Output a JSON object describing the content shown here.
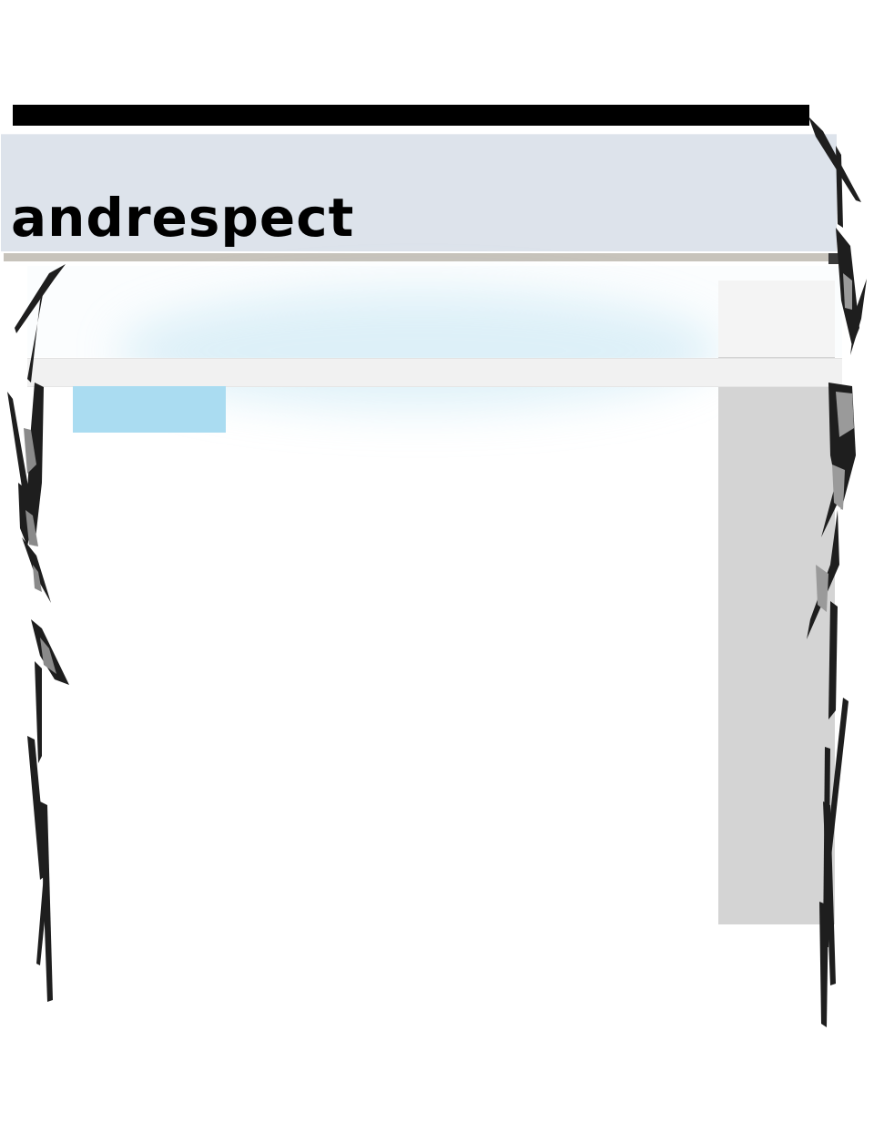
{
  "header": {
    "site_title": "andrespect"
  },
  "navigation": {
    "tabs": [
      {
        "label": "",
        "active": true
      }
    ]
  },
  "colors": {
    "top_bar": "#000000",
    "header_band": "#dde3eb",
    "header_rule": "#c7c3bb",
    "nav_strip": "#f1f1f1",
    "active_tab": "#aadcf1",
    "sidebar_panel": "#d4d4d4",
    "glow": "#a0d7ec"
  },
  "decorations": {
    "left_border": "grass-stroke-border",
    "right_border": "grass-stroke-border"
  }
}
